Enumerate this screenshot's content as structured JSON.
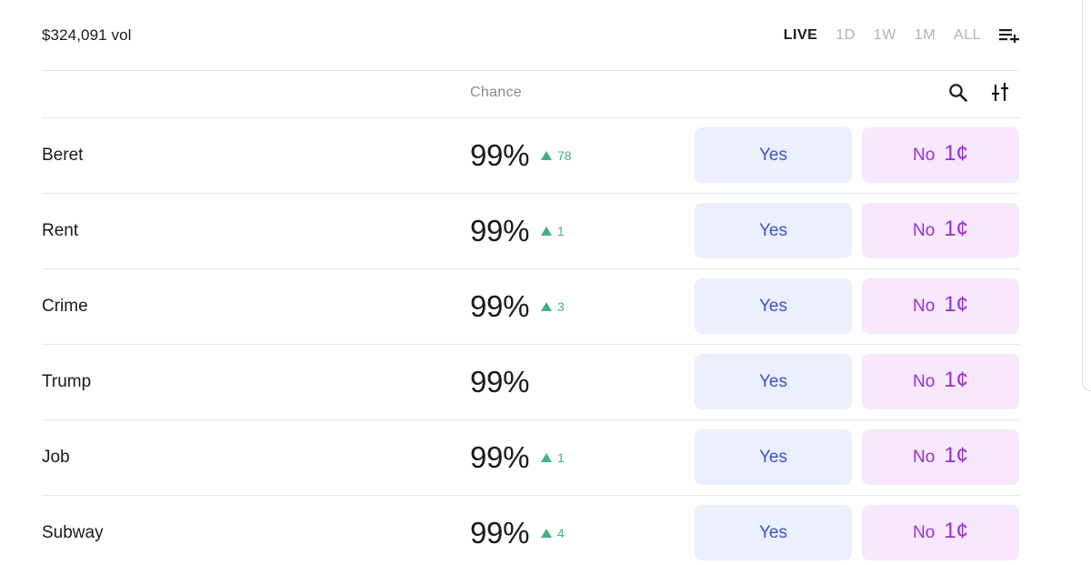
{
  "header": {
    "volume": "$324,091 vol",
    "ranges": [
      "LIVE",
      "1D",
      "1W",
      "1M",
      "ALL"
    ],
    "active_range": "LIVE"
  },
  "table": {
    "chance_label": "Chance",
    "rows": [
      {
        "name": "Beret",
        "chance": "99%",
        "delta": "78",
        "yes_label": "Yes",
        "no_label": "No",
        "no_price": "1¢"
      },
      {
        "name": "Rent",
        "chance": "99%",
        "delta": "1",
        "yes_label": "Yes",
        "no_label": "No",
        "no_price": "1¢"
      },
      {
        "name": "Crime",
        "chance": "99%",
        "delta": "3",
        "yes_label": "Yes",
        "no_label": "No",
        "no_price": "1¢"
      },
      {
        "name": "Trump",
        "chance": "99%",
        "delta": "",
        "yes_label": "Yes",
        "no_label": "No",
        "no_price": "1¢"
      },
      {
        "name": "Job",
        "chance": "99%",
        "delta": "1",
        "yes_label": "Yes",
        "no_label": "No",
        "no_price": "1¢"
      },
      {
        "name": "Subway",
        "chance": "99%",
        "delta": "4",
        "yes_label": "Yes",
        "no_label": "No",
        "no_price": "1¢"
      }
    ]
  },
  "icons": {
    "list_add": "playlist-add-icon",
    "search": "search-icon",
    "sort": "sort-icon"
  },
  "colors": {
    "up": "#3fb37f",
    "yes_bg": "#eceffd",
    "yes_text": "#3d54c9",
    "no_bg": "#f7e8fd",
    "no_text": "#9a2fd0"
  }
}
